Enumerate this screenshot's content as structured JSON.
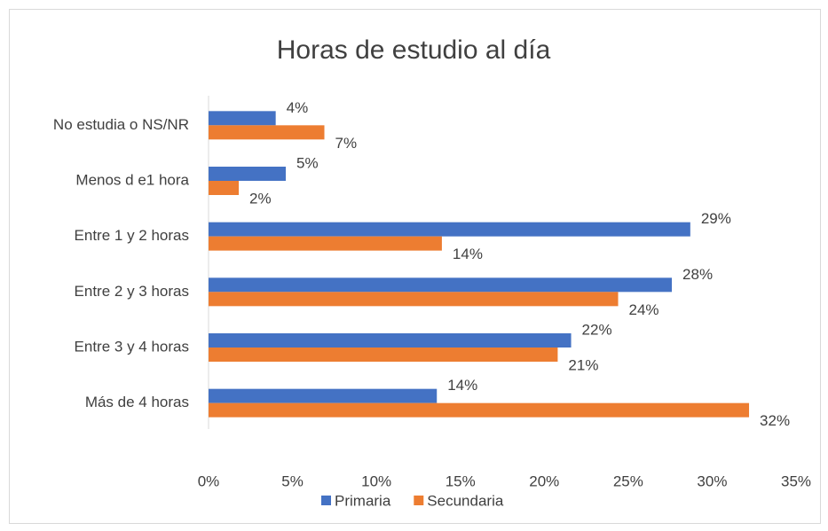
{
  "chart_data": {
    "type": "hbar",
    "title": "Horas de estudio al día",
    "categories": [
      "No estudia o NS/NR",
      "Menos d e1 hora",
      "Entre 1 y 2 horas",
      "Entre 2 y 3 horas",
      "Entre 3 y 4 horas",
      "Más de 4 horas"
    ],
    "series": [
      {
        "name": "Primaria",
        "color": "#4472c4",
        "values": [
          4,
          4.6,
          28.7,
          27.6,
          21.6,
          13.6
        ],
        "value_labels": [
          "4%",
          "5%",
          "29%",
          "28%",
          "22%",
          "14%"
        ]
      },
      {
        "name": "Secundaria",
        "color": "#ed7d31",
        "values": [
          6.9,
          1.8,
          13.9,
          24.4,
          20.8,
          32.2
        ],
        "value_labels": [
          "7%",
          "2%",
          "14%",
          "24%",
          "21%",
          "32%"
        ]
      }
    ],
    "xlim": [
      0,
      35
    ],
    "xticks": [
      {
        "value": 0,
        "label": "0%"
      },
      {
        "value": 5,
        "label": "5%"
      },
      {
        "value": 10,
        "label": "10%"
      },
      {
        "value": 15,
        "label": "15%"
      },
      {
        "value": 20,
        "label": "20%"
      },
      {
        "value": 25,
        "label": "25%"
      },
      {
        "value": 30,
        "label": "30%"
      },
      {
        "value": 35,
        "label": "35%"
      }
    ],
    "grid": false,
    "legend": "bottom"
  }
}
